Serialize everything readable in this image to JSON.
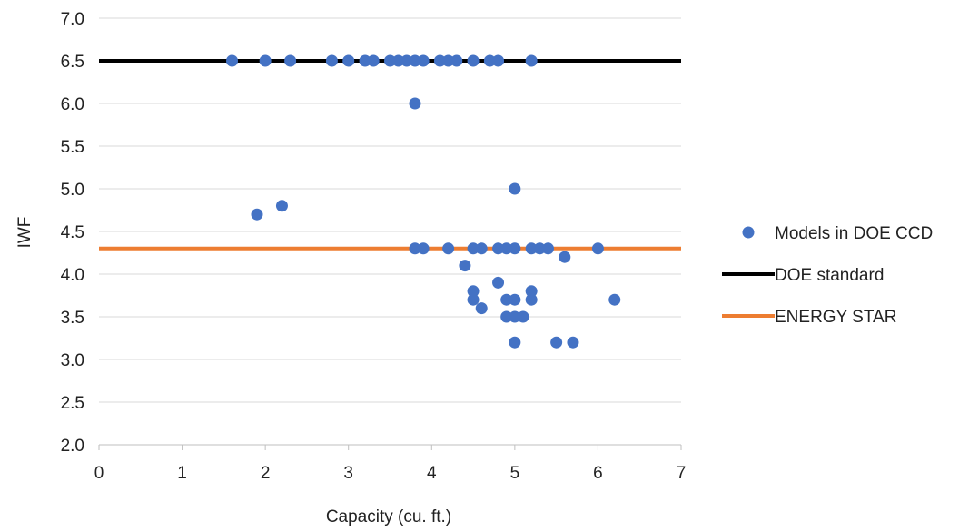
{
  "chart_data": {
    "type": "scatter",
    "title": "",
    "xlabel": "Capacity (cu. ft.)",
    "ylabel": "IWF",
    "xlim": [
      0,
      7
    ],
    "ylim": [
      2.0,
      7.0
    ],
    "x_ticks": [
      "0",
      "1",
      "2",
      "3",
      "4",
      "5",
      "6",
      "7"
    ],
    "y_ticks": [
      "2.0",
      "2.5",
      "3.0",
      "3.5",
      "4.0",
      "4.5",
      "5.0",
      "5.5",
      "6.0",
      "6.5",
      "7.0"
    ],
    "grid": "horizontal",
    "legend_position": "right",
    "series": [
      {
        "name": "Models in DOE CCD",
        "kind": "scatter",
        "color": "#4472C4",
        "points": [
          [
            1.6,
            6.5
          ],
          [
            2.0,
            6.5
          ],
          [
            2.3,
            6.5
          ],
          [
            2.8,
            6.5
          ],
          [
            3.0,
            6.5
          ],
          [
            3.2,
            6.5
          ],
          [
            3.3,
            6.5
          ],
          [
            3.5,
            6.5
          ],
          [
            3.6,
            6.5
          ],
          [
            3.7,
            6.5
          ],
          [
            3.8,
            6.5
          ],
          [
            3.9,
            6.5
          ],
          [
            4.1,
            6.5
          ],
          [
            4.2,
            6.5
          ],
          [
            4.3,
            6.5
          ],
          [
            4.5,
            6.5
          ],
          [
            4.7,
            6.5
          ],
          [
            4.8,
            6.5
          ],
          [
            5.2,
            6.5
          ],
          [
            3.8,
            6.0
          ],
          [
            5.0,
            5.0
          ],
          [
            1.9,
            4.7
          ],
          [
            2.2,
            4.8
          ],
          [
            3.8,
            4.3
          ],
          [
            3.9,
            4.3
          ],
          [
            4.2,
            4.3
          ],
          [
            4.5,
            4.3
          ],
          [
            4.6,
            4.3
          ],
          [
            4.8,
            4.3
          ],
          [
            4.9,
            4.3
          ],
          [
            5.0,
            4.3
          ],
          [
            5.2,
            4.3
          ],
          [
            5.3,
            4.3
          ],
          [
            5.4,
            4.3
          ],
          [
            6.0,
            4.3
          ],
          [
            5.6,
            4.2
          ],
          [
            4.4,
            4.1
          ],
          [
            4.8,
            3.9
          ],
          [
            4.5,
            3.8
          ],
          [
            5.2,
            3.8
          ],
          [
            4.5,
            3.7
          ],
          [
            4.9,
            3.7
          ],
          [
            5.0,
            3.7
          ],
          [
            5.2,
            3.7
          ],
          [
            6.2,
            3.7
          ],
          [
            4.6,
            3.6
          ],
          [
            4.9,
            3.5
          ],
          [
            5.0,
            3.5
          ],
          [
            5.1,
            3.5
          ],
          [
            5.0,
            3.2
          ],
          [
            5.5,
            3.2
          ],
          [
            5.7,
            3.2
          ]
        ]
      },
      {
        "name": "DOE standard",
        "kind": "line",
        "color": "#000000",
        "x": [
          0,
          7
        ],
        "y": [
          6.5,
          6.5
        ]
      },
      {
        "name": "ENERGY STAR",
        "kind": "line",
        "color": "#ED7D31",
        "x": [
          0,
          7
        ],
        "y": [
          4.3,
          4.3
        ]
      }
    ]
  }
}
